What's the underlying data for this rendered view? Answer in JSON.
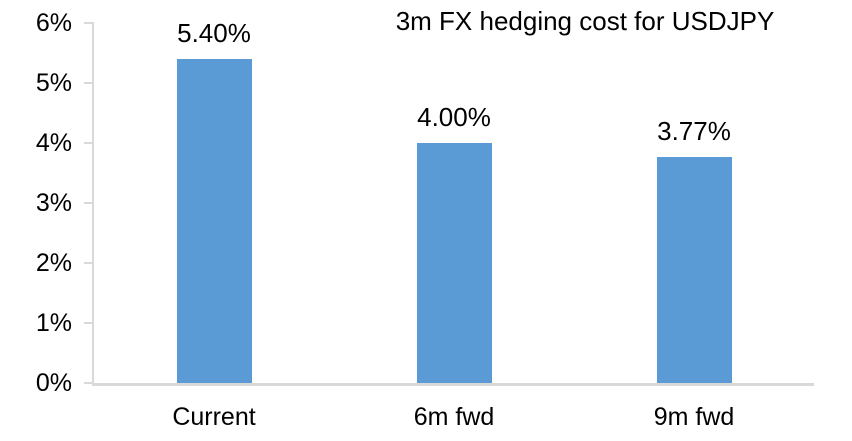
{
  "chart_data": {
    "type": "bar",
    "title": "3m FX hedging cost for USDJPY",
    "categories": [
      "Current",
      "6m fwd",
      "9m fwd"
    ],
    "values": [
      5.4,
      4.0,
      3.77
    ],
    "value_labels": [
      "5.40%",
      "4.00%",
      "3.77%"
    ],
    "y_ticks": [
      "0%",
      "1%",
      "2%",
      "3%",
      "4%",
      "5%",
      "6%"
    ],
    "y_tick_values": [
      0,
      1,
      2,
      3,
      4,
      5,
      6
    ],
    "ylim": [
      0,
      6
    ],
    "xlabel": "",
    "ylabel": "",
    "grid": false,
    "legend_position": "none",
    "bar_color": "#5B9BD5",
    "axis_color": "#D9D9D9",
    "text_color": "#000000",
    "background_color": "#FFFFFF"
  }
}
